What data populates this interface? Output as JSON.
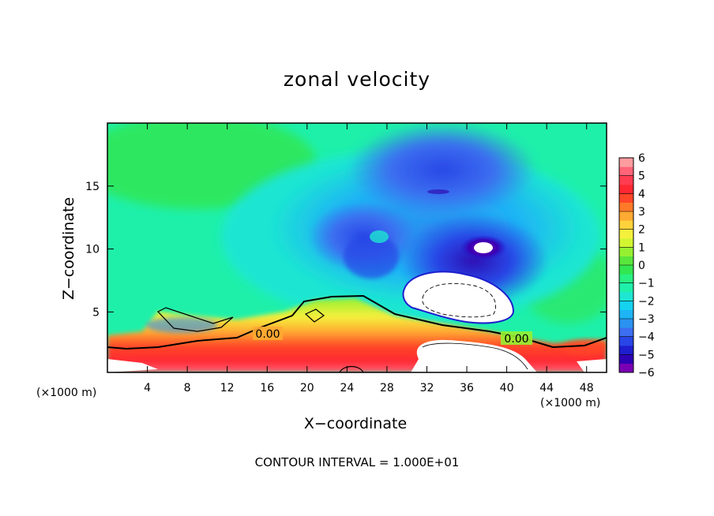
{
  "chart_data": {
    "type": "heatmap",
    "title": "zonal velocity",
    "xlabel": "X−coordinate",
    "ylabel": "Z−coordinate",
    "x_unit": "(×1000 m)",
    "footnote": "CONTOUR INTERVAL = 1.000E+01",
    "xlim": [
      0,
      50
    ],
    "ylim": [
      0.2,
      20
    ],
    "x_ticks": [
      4,
      8,
      12,
      16,
      20,
      24,
      28,
      32,
      36,
      40,
      44,
      48
    ],
    "y_ticks": [
      5,
      10,
      15
    ],
    "contour_labels": [
      "0.00",
      "0.00"
    ],
    "colorbar": {
      "min": -6,
      "max": 6,
      "tick_labels": [
        "6",
        "5",
        "4",
        "3",
        "2",
        "1",
        "0",
        "−1",
        "−2",
        "−3",
        "−4",
        "−5",
        "−6"
      ],
      "colors": [
        "#7a00b4",
        "#2e00b4",
        "#1e1ece",
        "#2846e6",
        "#3c6ef0",
        "#2a92f0",
        "#1eb4f5",
        "#14d2f0",
        "#1ee6d2",
        "#1ef0aa",
        "#28f082",
        "#32e650",
        "#5ae63c",
        "#96f032",
        "#d2f532",
        "#f5f03c",
        "#ffd23c",
        "#ffaa32",
        "#ff7a28",
        "#ff4628",
        "#ff2832",
        "#ff3c50",
        "#ff6478",
        "#ff9ca0"
      ]
    }
  }
}
